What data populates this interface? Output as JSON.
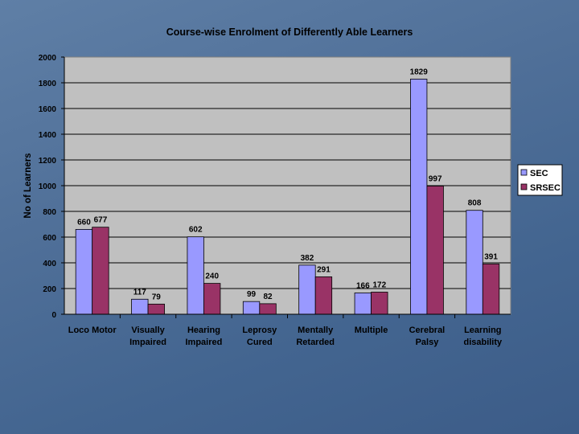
{
  "chart_data": {
    "type": "bar",
    "title": "Course-wise Enrolment of Differently Able Learners",
    "xlabel": "",
    "ylabel": "No of Learners",
    "ylim": [
      0,
      2000
    ],
    "ytick_step": 200,
    "yticks": [
      "0",
      "200",
      "400",
      "600",
      "800",
      "1000",
      "1200",
      "1400",
      "1600",
      "1800",
      "2000"
    ],
    "grid": true,
    "legend_position": "right",
    "categories": [
      [
        "Loco Motor"
      ],
      [
        "Visually",
        "Impaired"
      ],
      [
        "Hearing",
        "Impaired"
      ],
      [
        "Leprosy",
        "Cured"
      ],
      [
        "Mentally",
        "Retarded"
      ],
      [
        "Multiple"
      ],
      [
        "Cerebral",
        "Palsy"
      ],
      [
        "Learning",
        "disability"
      ]
    ],
    "series": [
      {
        "name": "SEC",
        "color": "#9999ff",
        "values": [
          660,
          117,
          602,
          99,
          382,
          166,
          1829,
          808
        ]
      },
      {
        "name": "SRSEC",
        "color": "#993366",
        "values": [
          677,
          79,
          240,
          82,
          291,
          172,
          997,
          391
        ]
      }
    ],
    "plot_background": "#c0c0c0"
  }
}
